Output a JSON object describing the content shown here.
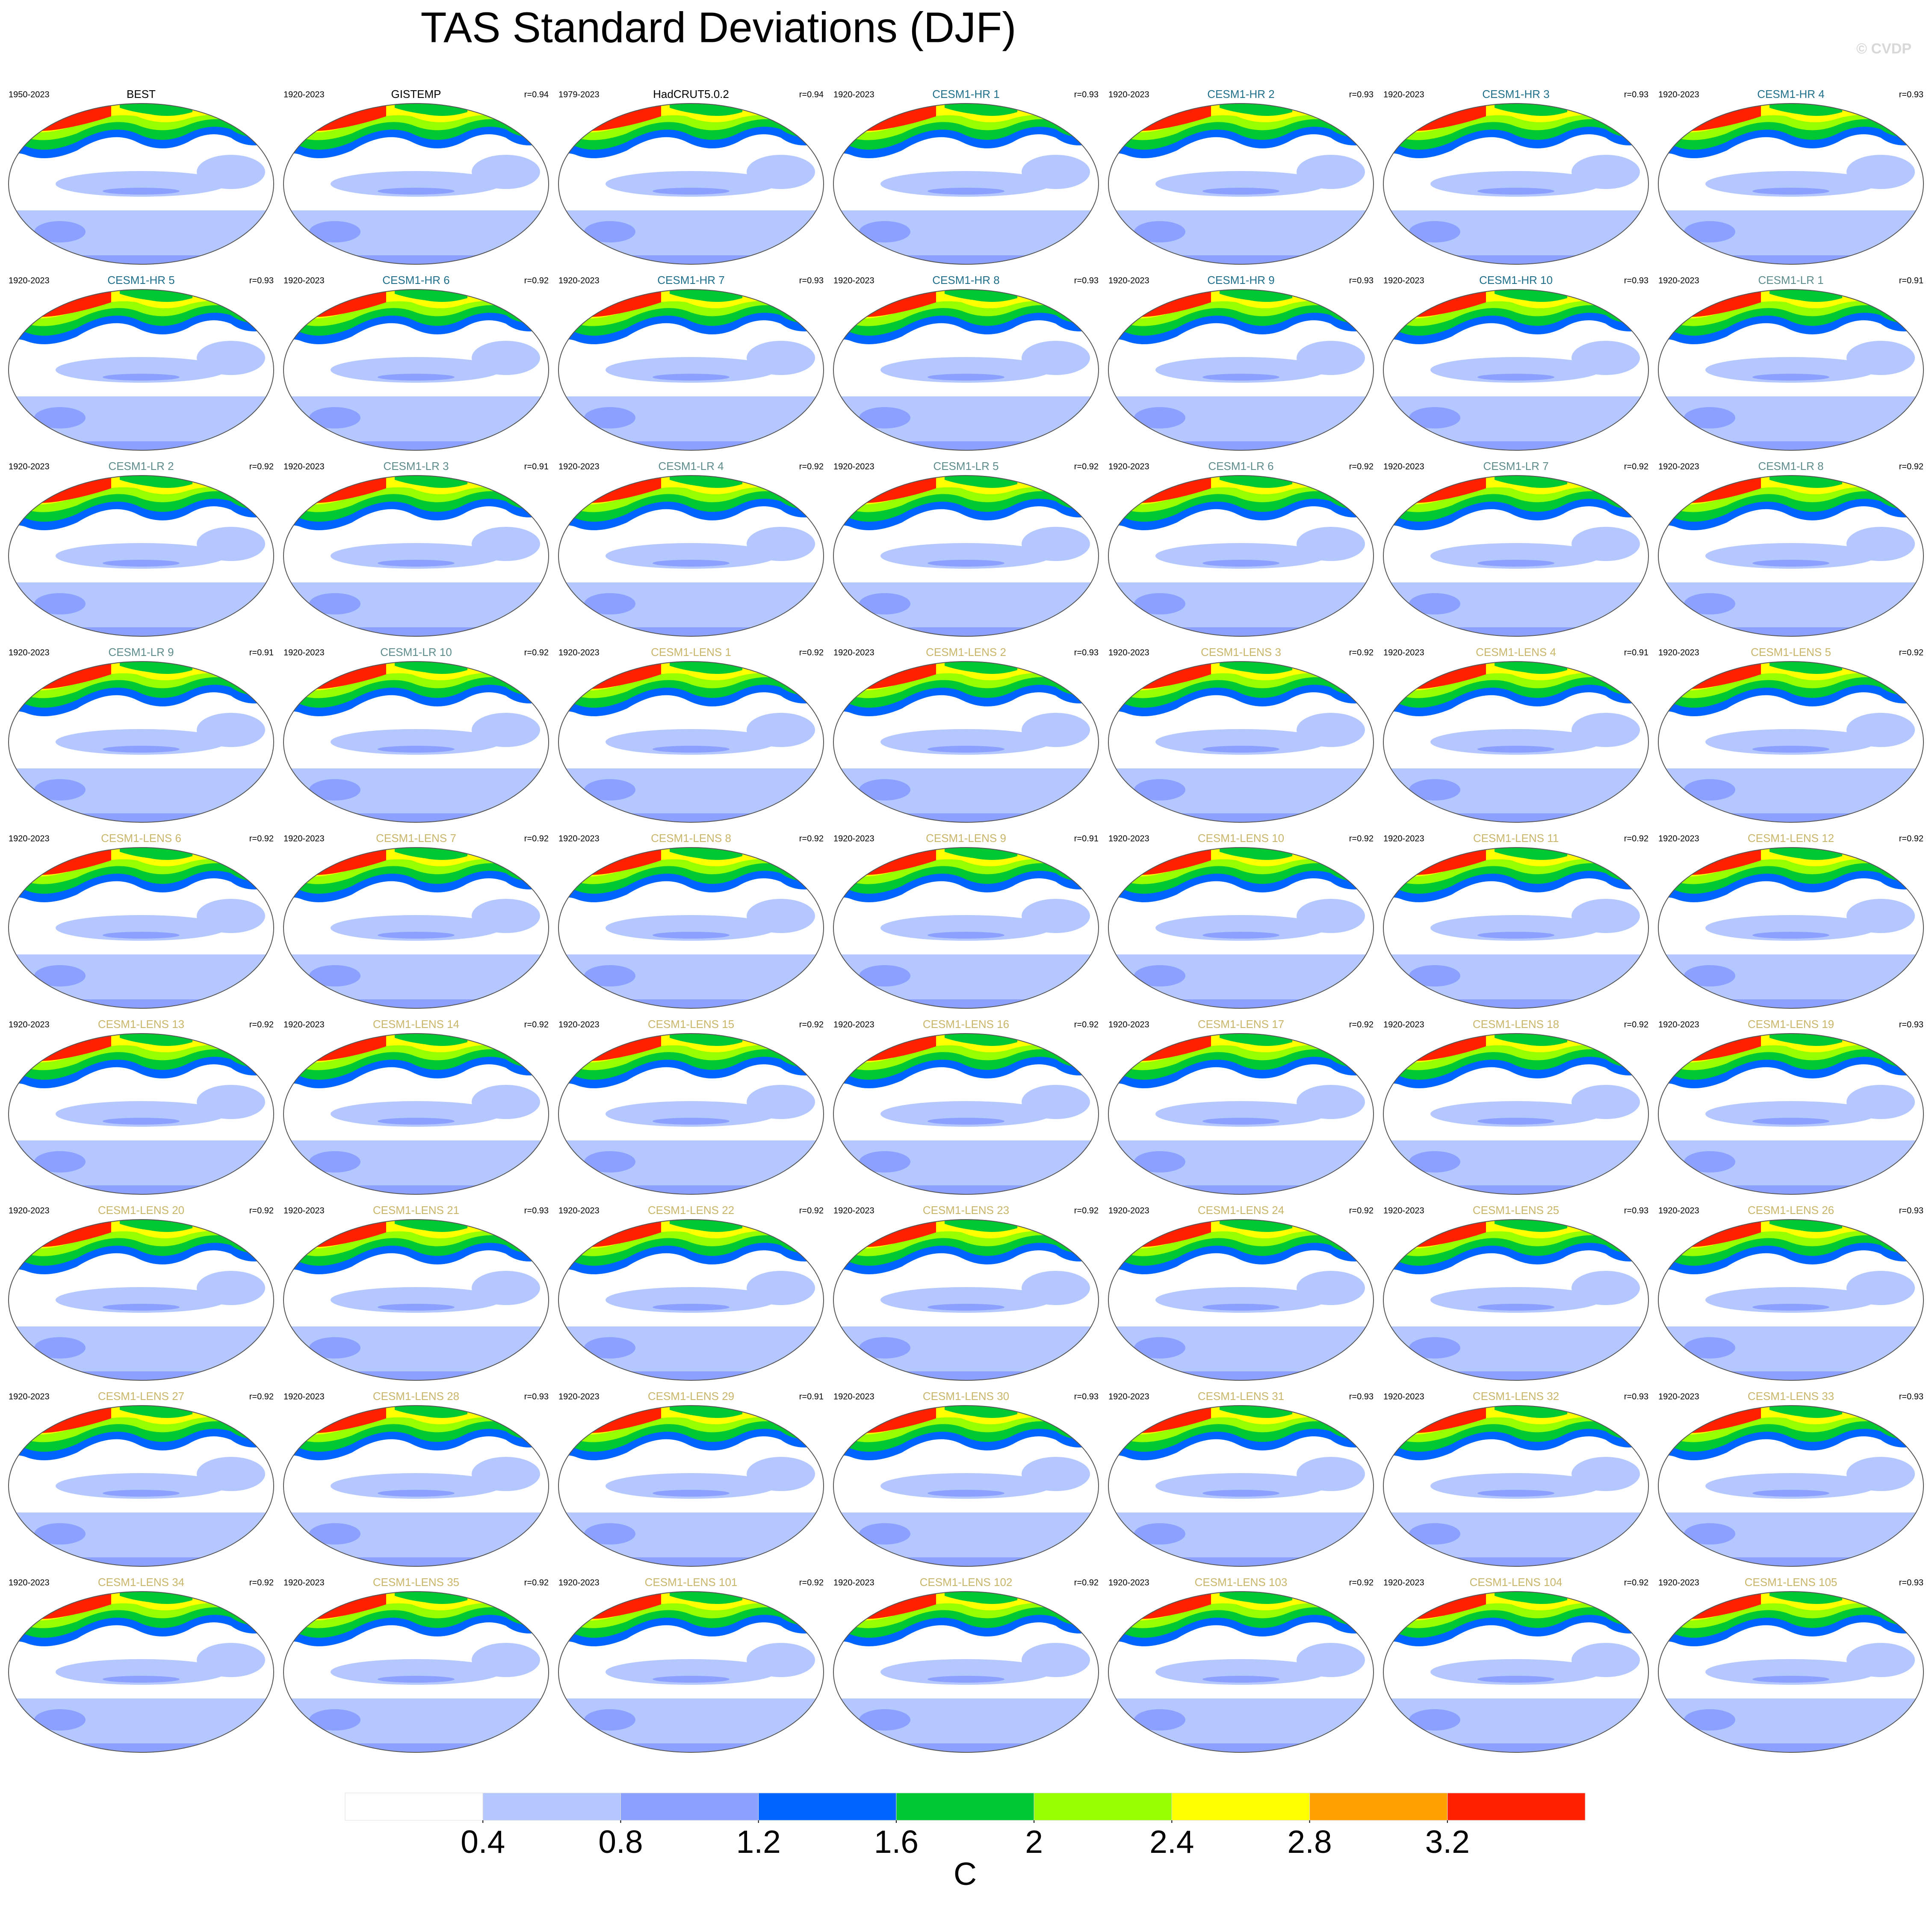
{
  "title": "TAS Standard Deviations (DJF)",
  "watermark": "© CVDP",
  "panels": [
    {
      "title": "BEST",
      "period": "1950-2023",
      "title_color": "#000000"
    },
    {
      "title": "GISTEMP",
      "period": "1920-2023",
      "r": "r=0.94",
      "title_color": "#000000"
    },
    {
      "title": "HadCRUT5.0.2",
      "period": "1979-2023",
      "r": "r=0.94",
      "title_color": "#000000"
    },
    {
      "title": "CESM1-HR 1",
      "period": "1920-2023",
      "r": "r=0.93",
      "title_color": "#1f6f8b"
    },
    {
      "title": "CESM1-HR 2",
      "period": "1920-2023",
      "r": "r=0.93",
      "title_color": "#1f6f8b"
    },
    {
      "title": "CESM1-HR 3",
      "period": "1920-2023",
      "r": "r=0.93",
      "title_color": "#1f6f8b"
    },
    {
      "title": "CESM1-HR 4",
      "period": "1920-2023",
      "r": "r=0.93",
      "title_color": "#1f6f8b"
    },
    {
      "title": "CESM1-HR 5",
      "period": "1920-2023",
      "r": "r=0.93",
      "title_color": "#1f6f8b"
    },
    {
      "title": "CESM1-HR 6",
      "period": "1920-2023",
      "r": "r=0.92",
      "title_color": "#1f6f8b"
    },
    {
      "title": "CESM1-HR 7",
      "period": "1920-2023",
      "r": "r=0.93",
      "title_color": "#1f6f8b"
    },
    {
      "title": "CESM1-HR 8",
      "period": "1920-2023",
      "r": "r=0.93",
      "title_color": "#1f6f8b"
    },
    {
      "title": "CESM1-HR 9",
      "period": "1920-2023",
      "r": "r=0.93",
      "title_color": "#1f6f8b"
    },
    {
      "title": "CESM1-HR 10",
      "period": "1920-2023",
      "r": "r=0.93",
      "title_color": "#1f6f8b"
    },
    {
      "title": "CESM1-LR 1",
      "period": "1920-2023",
      "r": "r=0.91",
      "title_color": "#5e8c8c"
    },
    {
      "title": "CESM1-LR 2",
      "period": "1920-2023",
      "r": "r=0.92",
      "title_color": "#5e8c8c"
    },
    {
      "title": "CESM1-LR 3",
      "period": "1920-2023",
      "r": "r=0.91",
      "title_color": "#5e8c8c"
    },
    {
      "title": "CESM1-LR 4",
      "period": "1920-2023",
      "r": "r=0.92",
      "title_color": "#5e8c8c"
    },
    {
      "title": "CESM1-LR 5",
      "period": "1920-2023",
      "r": "r=0.92",
      "title_color": "#5e8c8c"
    },
    {
      "title": "CESM1-LR 6",
      "period": "1920-2023",
      "r": "r=0.92",
      "title_color": "#5e8c8c"
    },
    {
      "title": "CESM1-LR 7",
      "period": "1920-2023",
      "r": "r=0.92",
      "title_color": "#5e8c8c"
    },
    {
      "title": "CESM1-LR 8",
      "period": "1920-2023",
      "r": "r=0.92",
      "title_color": "#5e8c8c"
    },
    {
      "title": "CESM1-LR 9",
      "period": "1920-2023",
      "r": "r=0.91",
      "title_color": "#5e8c8c"
    },
    {
      "title": "CESM1-LR 10",
      "period": "1920-2023",
      "r": "r=0.92",
      "title_color": "#5e8c8c"
    },
    {
      "title": "CESM1-LENS 1",
      "period": "1920-2023",
      "r": "r=0.92",
      "title_color": "#c9b66a"
    },
    {
      "title": "CESM1-LENS 2",
      "period": "1920-2023",
      "r": "r=0.93",
      "title_color": "#c9b66a"
    },
    {
      "title": "CESM1-LENS 3",
      "period": "1920-2023",
      "r": "r=0.92",
      "title_color": "#c9b66a"
    },
    {
      "title": "CESM1-LENS 4",
      "period": "1920-2023",
      "r": "r=0.91",
      "title_color": "#c9b66a"
    },
    {
      "title": "CESM1-LENS 5",
      "period": "1920-2023",
      "r": "r=0.92",
      "title_color": "#c9b66a"
    },
    {
      "title": "CESM1-LENS 6",
      "period": "1920-2023",
      "r": "r=0.92",
      "title_color": "#c9b66a"
    },
    {
      "title": "CESM1-LENS 7",
      "period": "1920-2023",
      "r": "r=0.92",
      "title_color": "#c9b66a"
    },
    {
      "title": "CESM1-LENS 8",
      "period": "1920-2023",
      "r": "r=0.92",
      "title_color": "#c9b66a"
    },
    {
      "title": "CESM1-LENS 9",
      "period": "1920-2023",
      "r": "r=0.91",
      "title_color": "#c9b66a"
    },
    {
      "title": "CESM1-LENS 10",
      "period": "1920-2023",
      "r": "r=0.92",
      "title_color": "#c9b66a"
    },
    {
      "title": "CESM1-LENS 11",
      "period": "1920-2023",
      "r": "r=0.92",
      "title_color": "#c9b66a"
    },
    {
      "title": "CESM1-LENS 12",
      "period": "1920-2023",
      "r": "r=0.92",
      "title_color": "#c9b66a"
    },
    {
      "title": "CESM1-LENS 13",
      "period": "1920-2023",
      "r": "r=0.92",
      "title_color": "#c9b66a"
    },
    {
      "title": "CESM1-LENS 14",
      "period": "1920-2023",
      "r": "r=0.92",
      "title_color": "#c9b66a"
    },
    {
      "title": "CESM1-LENS 15",
      "period": "1920-2023",
      "r": "r=0.92",
      "title_color": "#c9b66a"
    },
    {
      "title": "CESM1-LENS 16",
      "period": "1920-2023",
      "r": "r=0.92",
      "title_color": "#c9b66a"
    },
    {
      "title": "CESM1-LENS 17",
      "period": "1920-2023",
      "r": "r=0.92",
      "title_color": "#c9b66a"
    },
    {
      "title": "CESM1-LENS 18",
      "period": "1920-2023",
      "r": "r=0.92",
      "title_color": "#c9b66a"
    },
    {
      "title": "CESM1-LENS 19",
      "period": "1920-2023",
      "r": "r=0.93",
      "title_color": "#c9b66a"
    },
    {
      "title": "CESM1-LENS 20",
      "period": "1920-2023",
      "r": "r=0.92",
      "title_color": "#c9b66a"
    },
    {
      "title": "CESM1-LENS 21",
      "period": "1920-2023",
      "r": "r=0.93",
      "title_color": "#c9b66a"
    },
    {
      "title": "CESM1-LENS 22",
      "period": "1920-2023",
      "r": "r=0.92",
      "title_color": "#c9b66a"
    },
    {
      "title": "CESM1-LENS 23",
      "period": "1920-2023",
      "r": "r=0.92",
      "title_color": "#c9b66a"
    },
    {
      "title": "CESM1-LENS 24",
      "period": "1920-2023",
      "r": "r=0.92",
      "title_color": "#c9b66a"
    },
    {
      "title": "CESM1-LENS 25",
      "period": "1920-2023",
      "r": "r=0.93",
      "title_color": "#c9b66a"
    },
    {
      "title": "CESM1-LENS 26",
      "period": "1920-2023",
      "r": "r=0.93",
      "title_color": "#c9b66a"
    },
    {
      "title": "CESM1-LENS 27",
      "period": "1920-2023",
      "r": "r=0.92",
      "title_color": "#c9b66a"
    },
    {
      "title": "CESM1-LENS 28",
      "period": "1920-2023",
      "r": "r=0.93",
      "title_color": "#c9b66a"
    },
    {
      "title": "CESM1-LENS 29",
      "period": "1920-2023",
      "r": "r=0.91",
      "title_color": "#c9b66a"
    },
    {
      "title": "CESM1-LENS 30",
      "period": "1920-2023",
      "r": "r=0.93",
      "title_color": "#c9b66a"
    },
    {
      "title": "CESM1-LENS 31",
      "period": "1920-2023",
      "r": "r=0.93",
      "title_color": "#c9b66a"
    },
    {
      "title": "CESM1-LENS 32",
      "period": "1920-2023",
      "r": "r=0.93",
      "title_color": "#c9b66a"
    },
    {
      "title": "CESM1-LENS 33",
      "period": "1920-2023",
      "r": "r=0.93",
      "title_color": "#c9b66a"
    },
    {
      "title": "CESM1-LENS 34",
      "period": "1920-2023",
      "r": "r=0.92",
      "title_color": "#c9b66a"
    },
    {
      "title": "CESM1-LENS 35",
      "period": "1920-2023",
      "r": "r=0.92",
      "title_color": "#c9b66a"
    },
    {
      "title": "CESM1-LENS 101",
      "period": "1920-2023",
      "r": "r=0.92",
      "title_color": "#c9b66a"
    },
    {
      "title": "CESM1-LENS 102",
      "period": "1920-2023",
      "r": "r=0.92",
      "title_color": "#c9b66a"
    },
    {
      "title": "CESM1-LENS 103",
      "period": "1920-2023",
      "r": "r=0.92",
      "title_color": "#c9b66a"
    },
    {
      "title": "CESM1-LENS 104",
      "period": "1920-2023",
      "r": "r=0.92",
      "title_color": "#c9b66a"
    },
    {
      "title": "CESM1-LENS 105",
      "period": "1920-2023",
      "r": "r=0.93",
      "title_color": "#c9b66a"
    }
  ],
  "colorbar": {
    "colors": [
      "#ffffff",
      "#b4c8ff",
      "#8ca0ff",
      "#0064ff",
      "#00c832",
      "#96ff00",
      "#ffff00",
      "#ffa000",
      "#ff2000"
    ],
    "ticks": [
      0.4,
      0.8,
      1.2,
      1.6,
      2,
      2.4,
      2.8,
      3.2
    ],
    "label": "C"
  }
}
